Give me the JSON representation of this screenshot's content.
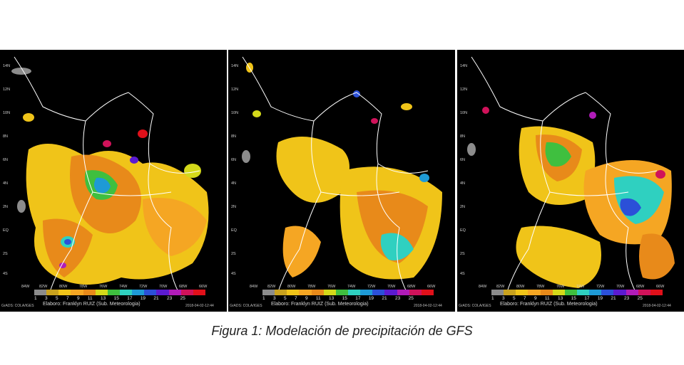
{
  "figure": {
    "caption": "Figura 1: Modelación de precipitación de GFS"
  },
  "colorbar": {
    "colors": [
      "#8c8c8c",
      "#c9a21e",
      "#f0c419",
      "#f5a623",
      "#e88a1a",
      "#d4d91a",
      "#3fbf3f",
      "#2fd0c0",
      "#1e9ad6",
      "#2b50d8",
      "#5b1bd0",
      "#b01cb8",
      "#d0125a",
      "#e0101a"
    ],
    "labels": [
      "1",
      "3",
      "5",
      "7",
      "9",
      "11",
      "13",
      "15",
      "17",
      "19",
      "21",
      "23",
      "25"
    ]
  },
  "panels": [
    {
      "credit": "Elaboro: Franklyn RUIZ (Sub. Meteorologia)",
      "source": "GrADS: COLA/IGES",
      "timestamp": "2018-04-02-12:44",
      "lat_labels": [
        "14N",
        "12N",
        "10N",
        "8N",
        "6N",
        "4N",
        "2N",
        "EQ",
        "2S",
        "4S"
      ],
      "lon_labels": [
        "84W",
        "82W",
        "80W",
        "78W",
        "76W",
        "74W",
        "72W",
        "70W",
        "68W",
        "66W"
      ]
    },
    {
      "credit": "Elaboro: Franklyn RUIZ (Sub. Meteorologia)",
      "source": "GrADS: COLA/IGES",
      "timestamp": "2018-04-02-12:44",
      "lat_labels": [
        "14N",
        "12N",
        "10N",
        "8N",
        "6N",
        "4N",
        "2N",
        "EQ",
        "2S",
        "4S"
      ],
      "lon_labels": [
        "84W",
        "82W",
        "80W",
        "78W",
        "76W",
        "74W",
        "72W",
        "70W",
        "68W",
        "66W"
      ]
    },
    {
      "credit": "Elaboro: Franklyn RUIZ (Sub. Meteorologia)",
      "source": "GrADS: COLA/IGES",
      "timestamp": "2018-04-02-12:44",
      "lat_labels": [
        "14N",
        "12N",
        "10N",
        "8N",
        "6N",
        "4N",
        "2N",
        "EQ",
        "2S",
        "4S"
      ],
      "lon_labels": [
        "84W",
        "82W",
        "80W",
        "78W",
        "76W",
        "74W",
        "72W",
        "70W",
        "68W",
        "66W"
      ]
    }
  ]
}
